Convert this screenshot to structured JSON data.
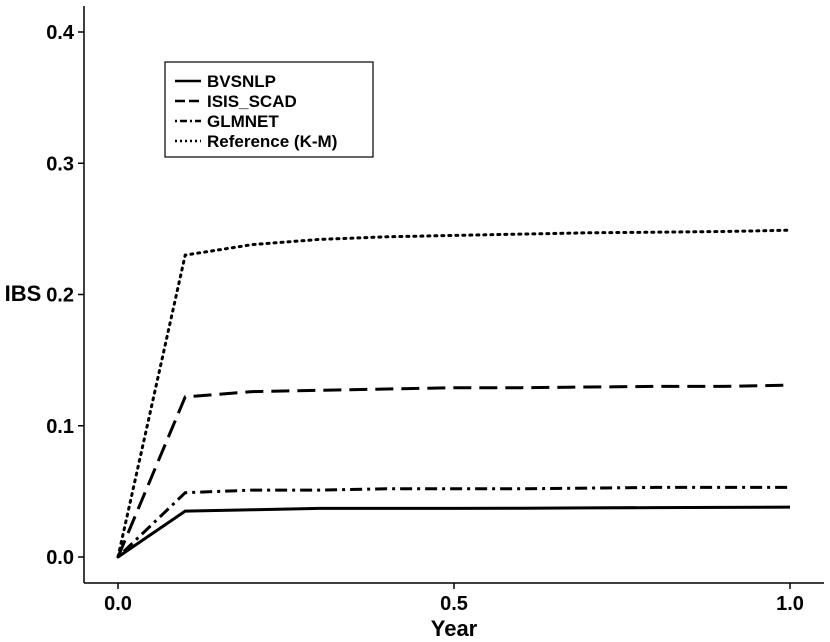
{
  "chart_data": {
    "type": "line",
    "title": "",
    "xlabel": "Year",
    "ylabel": "IBS",
    "xlim": [
      0,
      1
    ],
    "ylim": [
      0,
      0.4
    ],
    "x_ticks": [
      "0.0",
      "0.5",
      "1.0"
    ],
    "y_ticks": [
      "0.0",
      "0.1",
      "0.2",
      "0.3",
      "0.4"
    ],
    "grid": false,
    "legend_position": "top-left",
    "series": [
      {
        "name": "BVSNLP",
        "style": "solid",
        "color": "#000000",
        "x": [
          0,
          0.1,
          0.2,
          0.3,
          0.4,
          0.5,
          0.6,
          0.7,
          0.8,
          0.9,
          1.0
        ],
        "y": [
          0.0,
          0.035,
          0.036,
          0.037,
          0.037,
          0.037,
          0.0372,
          0.0374,
          0.0376,
          0.0378,
          0.038
        ]
      },
      {
        "name": "ISIS_SCAD",
        "style": "dashed",
        "color": "#000000",
        "x": [
          0,
          0.1,
          0.2,
          0.3,
          0.4,
          0.5,
          0.6,
          0.7,
          0.8,
          0.9,
          1.0
        ],
        "y": [
          0.0,
          0.122,
          0.126,
          0.127,
          0.128,
          0.129,
          0.129,
          0.1295,
          0.13,
          0.13,
          0.131
        ]
      },
      {
        "name": "GLMNET",
        "style": "dotdash",
        "color": "#000000",
        "x": [
          0,
          0.1,
          0.2,
          0.3,
          0.4,
          0.5,
          0.6,
          0.7,
          0.8,
          0.9,
          1.0
        ],
        "y": [
          0.0,
          0.049,
          0.051,
          0.051,
          0.052,
          0.052,
          0.052,
          0.0525,
          0.053,
          0.053,
          0.053
        ]
      },
      {
        "name": "Reference (K-M)",
        "style": "dotted",
        "color": "#000000",
        "x": [
          0,
          0.1,
          0.2,
          0.3,
          0.4,
          0.5,
          0.6,
          0.7,
          0.8,
          0.9,
          1.0
        ],
        "y": [
          0.0,
          0.23,
          0.238,
          0.242,
          0.244,
          0.245,
          0.246,
          0.247,
          0.2475,
          0.248,
          0.249
        ]
      }
    ]
  }
}
